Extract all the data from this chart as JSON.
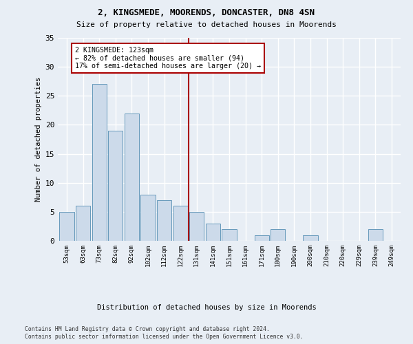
{
  "title1": "2, KINGSMEDE, MOORENDS, DONCASTER, DN8 4SN",
  "title2": "Size of property relative to detached houses in Moorends",
  "xlabel": "Distribution of detached houses by size in Moorends",
  "ylabel": "Number of detached properties",
  "categories": [
    "53sqm",
    "63sqm",
    "73sqm",
    "82sqm",
    "92sqm",
    "102sqm",
    "112sqm",
    "122sqm",
    "131sqm",
    "141sqm",
    "151sqm",
    "161sqm",
    "171sqm",
    "180sqm",
    "190sqm",
    "200sqm",
    "210sqm",
    "220sqm",
    "229sqm",
    "239sqm",
    "249sqm"
  ],
  "values": [
    5,
    6,
    27,
    19,
    22,
    8,
    7,
    6,
    5,
    3,
    2,
    0,
    1,
    2,
    0,
    1,
    0,
    0,
    0,
    2,
    0
  ],
  "bar_color": "#ccdaea",
  "bar_edge_color": "#6699bb",
  "vline_x": 7.5,
  "vline_color": "#aa0000",
  "annotation_text": "2 KINGSMEDE: 123sqm\n← 82% of detached houses are smaller (94)\n17% of semi-detached houses are larger (20) →",
  "annotation_box_color": "#ffffff",
  "annotation_box_edge": "#aa0000",
  "ylim": [
    0,
    35
  ],
  "yticks": [
    0,
    5,
    10,
    15,
    20,
    25,
    30,
    35
  ],
  "bg_color": "#e8eef5",
  "grid_color": "#ffffff",
  "footer1": "Contains HM Land Registry data © Crown copyright and database right 2024.",
  "footer2": "Contains public sector information licensed under the Open Government Licence v3.0."
}
